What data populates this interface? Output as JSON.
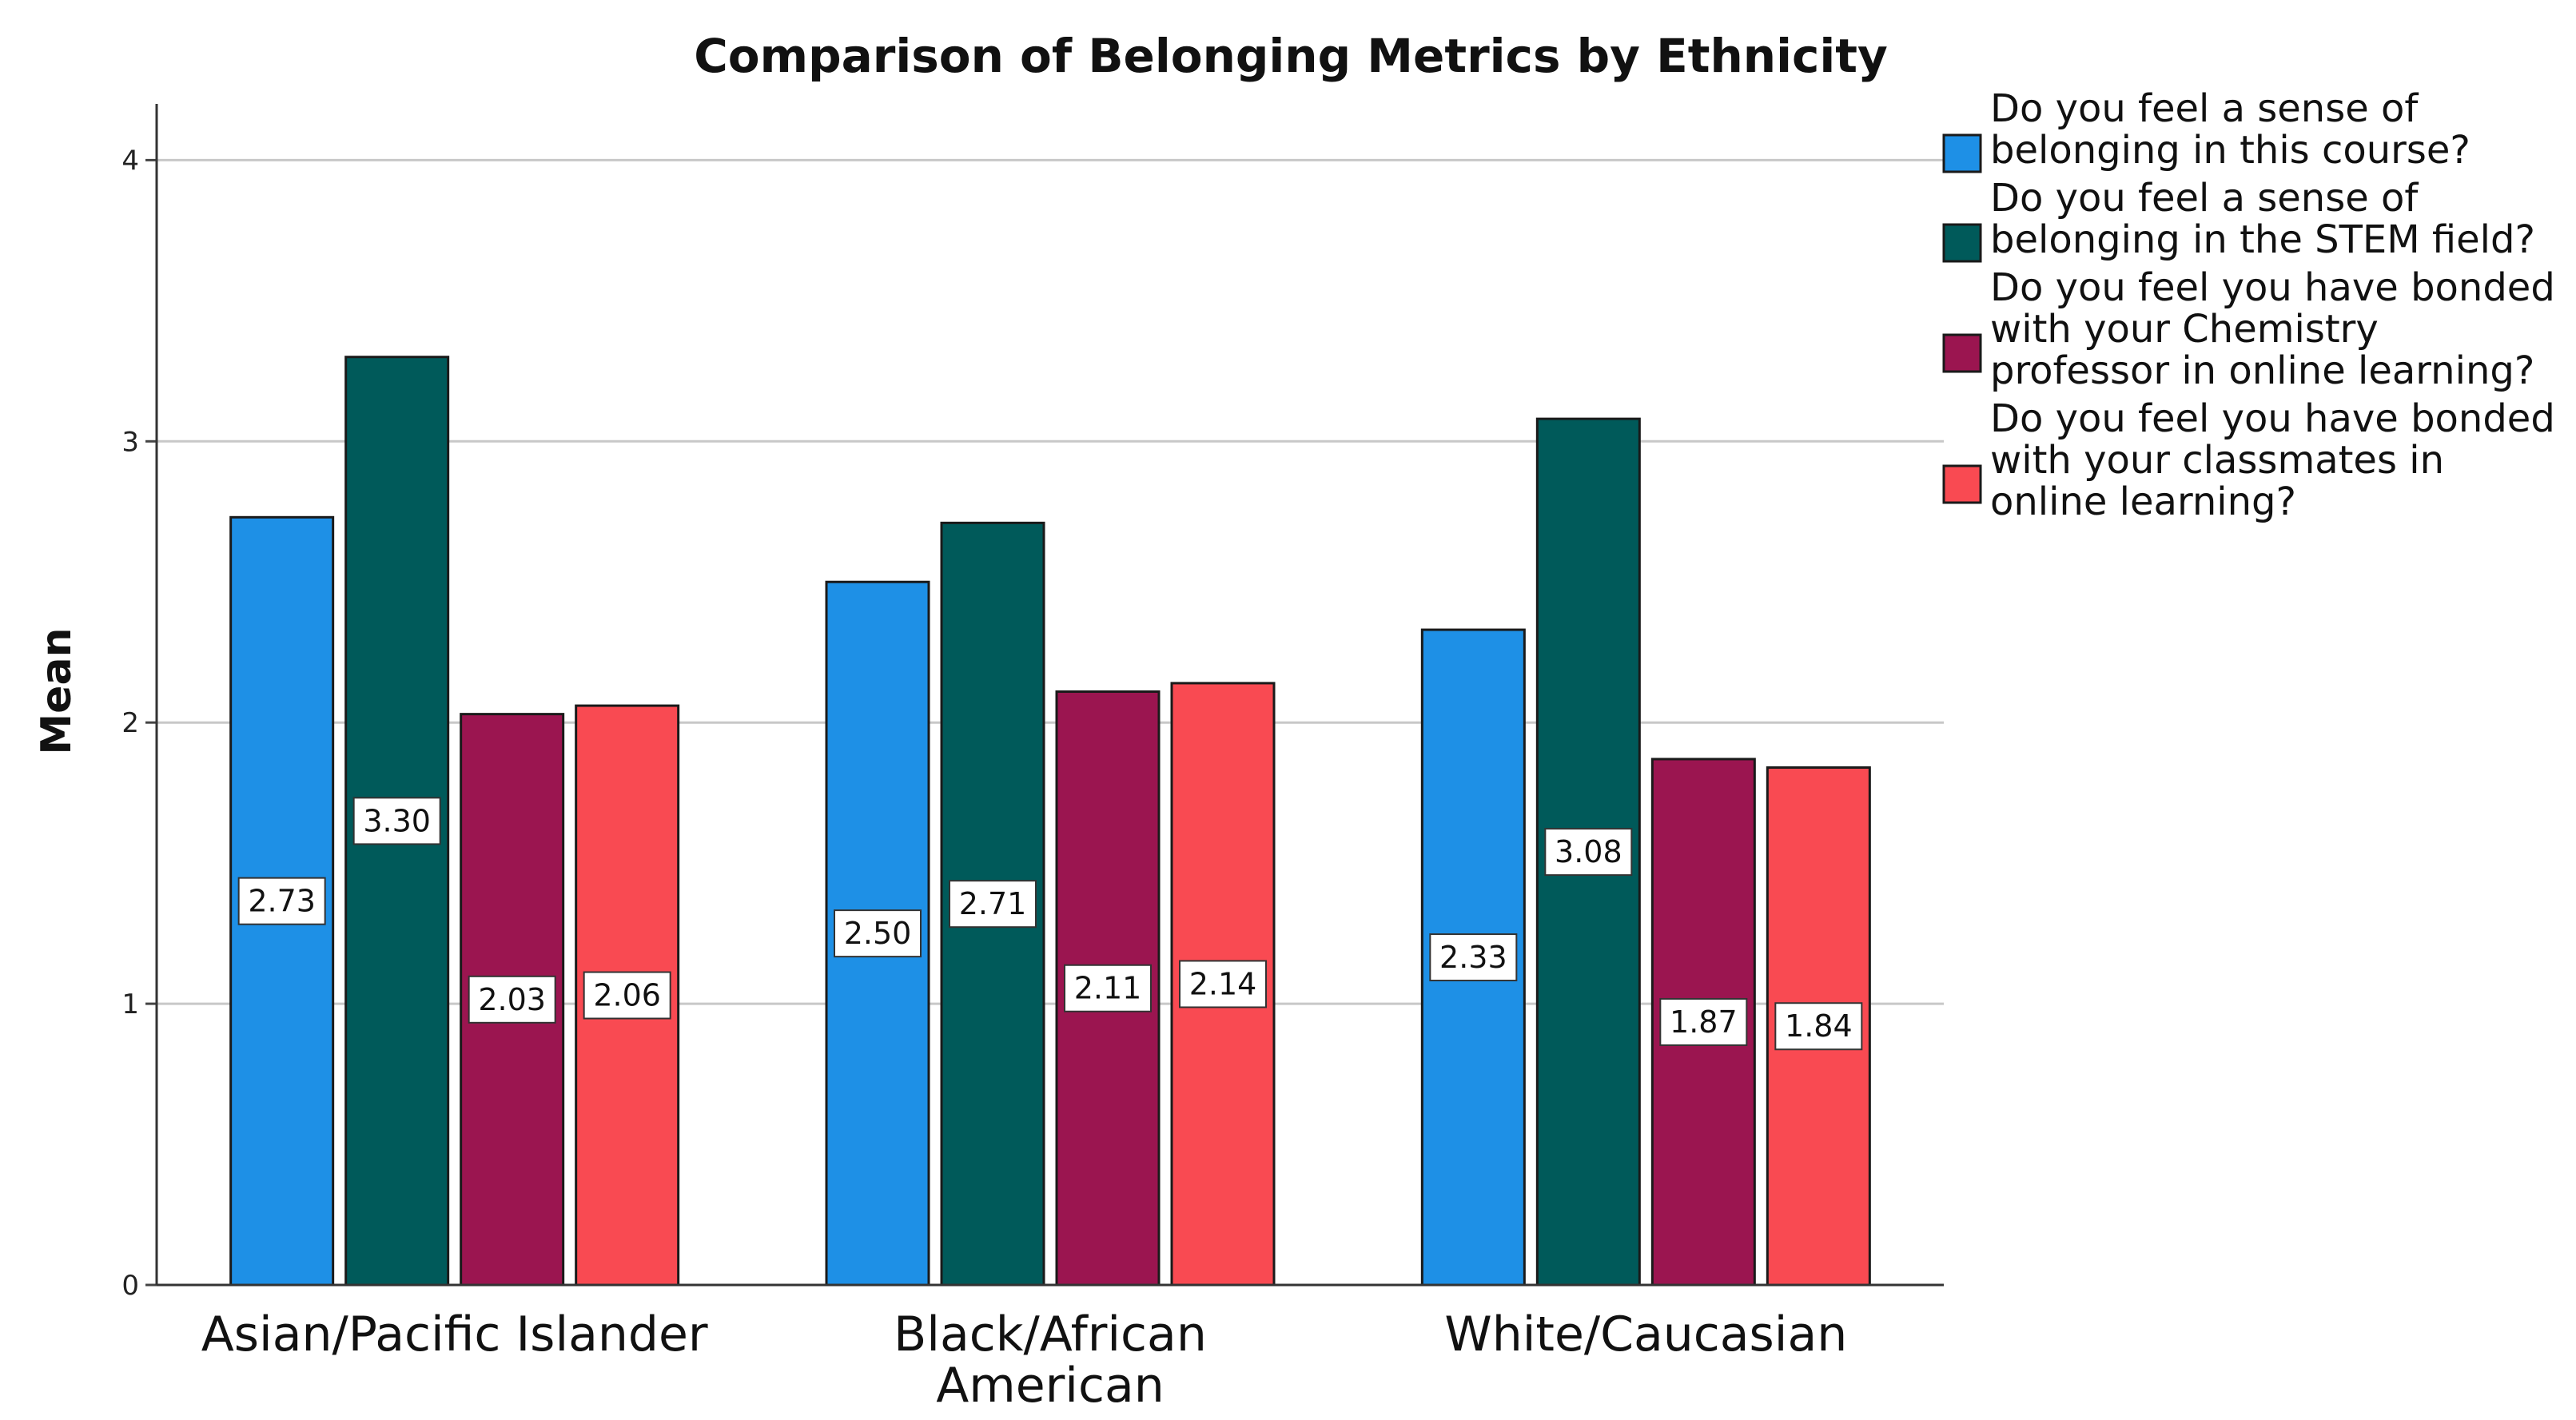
{
  "chart_data": {
    "type": "bar",
    "title": "Comparison of Belonging Metrics by Ethnicity",
    "xlabel": "",
    "ylabel": "Mean",
    "ylim": [
      0,
      4.2
    ],
    "yticks": [
      0,
      1,
      2,
      3,
      4
    ],
    "grid": true,
    "legend_position": "right",
    "categories": [
      [
        "Asian/Pacific Islander"
      ],
      [
        "Black/African",
        "American"
      ],
      [
        "White/Caucasian"
      ]
    ],
    "series": [
      {
        "name": "Do you feel a sense of belonging in this course?",
        "legend_lines": [
          "Do you feel a sense of",
          "belonging in this course?"
        ],
        "color": "#1E90E6",
        "values": [
          2.73,
          2.5,
          2.33
        ],
        "labels": [
          "2.73",
          "2.50",
          "2.33"
        ]
      },
      {
        "name": "Do you feel a sense of belonging in the STEM field?",
        "legend_lines": [
          "Do you feel a sense of",
          "belonging in the STEM field?"
        ],
        "color": "#005A5A",
        "values": [
          3.3,
          2.71,
          3.08
        ],
        "labels": [
          "3.30",
          "2.71",
          "3.08"
        ]
      },
      {
        "name": "Do you feel you have bonded with your Chemistry professor in online learning?",
        "legend_lines": [
          "Do you feel you have bonded",
          "with your Chemistry",
          "professor in online learning?"
        ],
        "color": "#9B1550",
        "values": [
          2.03,
          2.11,
          1.87
        ],
        "labels": [
          "2.03",
          "2.11",
          "1.87"
        ]
      },
      {
        "name": "Do you feel you have bonded with your classmates in online learning?",
        "legend_lines": [
          "Do you feel you have bonded",
          "with your classmates in",
          "online learning?"
        ],
        "color": "#F94A52",
        "values": [
          2.06,
          2.14,
          1.84
        ],
        "labels": [
          "2.06",
          "2.14",
          "1.84"
        ]
      }
    ]
  }
}
